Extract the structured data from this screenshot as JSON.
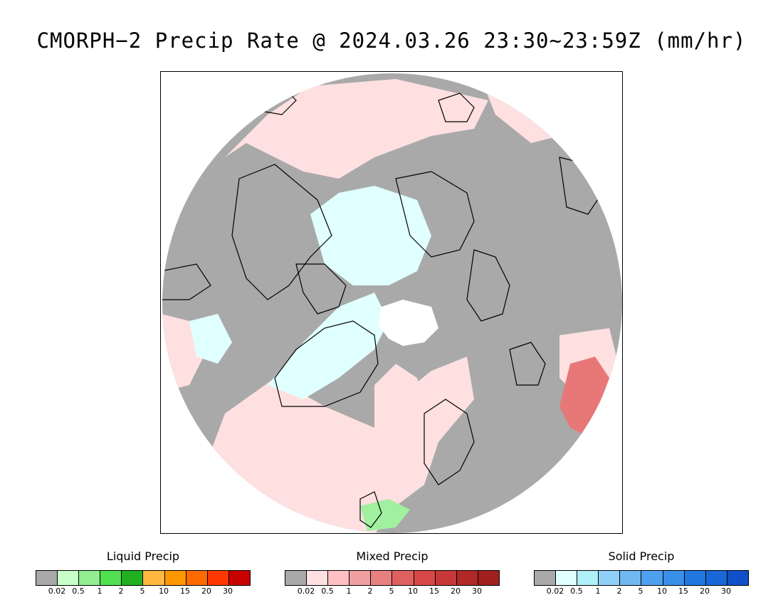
{
  "title": "CMORPH−2 Precip Rate @ 2024.03.26 23:30~23:59Z (mm/hr)",
  "map": {
    "projection": "north-polar-stereographic",
    "colors": {
      "no_precip": "#a9a9a9",
      "missing": "#ffffff",
      "mixed_light": "#ffe0e0",
      "solid_light": "#e0ffff",
      "mixed_moderate": "#e87878",
      "liquid_light": "#a0f0a0",
      "coastline": "#000000"
    }
  },
  "legends": [
    {
      "title": "Liquid Precip",
      "colors": [
        "#a9a9a9",
        "#c8ffc8",
        "#90ee90",
        "#50e050",
        "#20b020",
        "#ffb840",
        "#ff9800",
        "#ff6a00",
        "#ff3800",
        "#c80000"
      ],
      "ticks": [
        "0.02",
        "0.5",
        "1",
        "2",
        "5",
        "10",
        "15",
        "20",
        "30"
      ]
    },
    {
      "title": "Mixed Precip",
      "colors": [
        "#a9a9a9",
        "#ffe0e0",
        "#ffc0c4",
        "#f0a0a0",
        "#e88080",
        "#e06060",
        "#d84848",
        "#c83838",
        "#b02828",
        "#a02020"
      ],
      "ticks": [
        "0.02",
        "0.5",
        "1",
        "2",
        "5",
        "10",
        "15",
        "20",
        "30"
      ]
    },
    {
      "title": "Solid Precip",
      "colors": [
        "#a9a9a9",
        "#e0ffff",
        "#b0f0f8",
        "#90d0f8",
        "#70b8f0",
        "#50a0f0",
        "#3890e8",
        "#2078e0",
        "#1868d8",
        "#1050c8"
      ],
      "ticks": [
        "0.02",
        "0.5",
        "1",
        "2",
        "5",
        "10",
        "15",
        "20",
        "30"
      ]
    }
  ]
}
